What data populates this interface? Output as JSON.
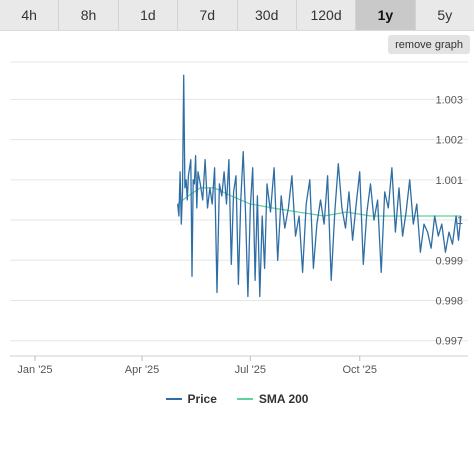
{
  "tabs": [
    {
      "label": "4h",
      "active": false
    },
    {
      "label": "8h",
      "active": false
    },
    {
      "label": "1d",
      "active": false
    },
    {
      "label": "7d",
      "active": false
    },
    {
      "label": "30d",
      "active": false
    },
    {
      "label": "120d",
      "active": false
    },
    {
      "label": "1y",
      "active": true
    },
    {
      "label": "5y",
      "active": false
    }
  ],
  "remove_graph_label": "remove graph",
  "colors": {
    "price": "#2f6ea5",
    "sma": "#5fd19a",
    "grid": "#e6e6e6"
  },
  "chart_data": {
    "type": "line",
    "title": "",
    "xlabel": "",
    "ylabel": "",
    "x_ticks": [
      "Jan '25",
      "Apr '25",
      "Jul '25",
      "Oct '25"
    ],
    "y_ticks": [
      "0.997",
      "0.998",
      "0.999",
      "1",
      "1.001",
      "1.002",
      "1.003"
    ],
    "xlim": [
      "2024-12-11",
      "2025-12-31"
    ],
    "ylim": [
      0.99662,
      1.00393
    ],
    "grid": true,
    "legend_position": "bottom",
    "series": [
      {
        "name": "Price",
        "color": "#2f6ea5",
        "x": [
          "2025-05-01",
          "2025-05-02",
          "2025-05-03",
          "2025-05-04",
          "2025-05-05",
          "2025-05-06",
          "2025-05-07",
          "2025-05-08",
          "2025-05-09",
          "2025-05-10",
          "2025-05-11",
          "2025-05-12",
          "2025-05-13",
          "2025-05-14",
          "2025-05-15",
          "2025-05-16",
          "2025-05-17",
          "2025-05-18",
          "2025-05-20",
          "2025-05-22",
          "2025-05-24",
          "2025-05-26",
          "2025-05-28",
          "2025-05-30",
          "2025-06-01",
          "2025-06-03",
          "2025-06-05",
          "2025-06-07",
          "2025-06-09",
          "2025-06-11",
          "2025-06-13",
          "2025-06-15",
          "2025-06-17",
          "2025-06-19",
          "2025-06-21",
          "2025-06-23",
          "2025-06-25",
          "2025-06-27",
          "2025-06-29",
          "2025-07-01",
          "2025-07-03",
          "2025-07-05",
          "2025-07-07",
          "2025-07-09",
          "2025-07-11",
          "2025-07-13",
          "2025-07-15",
          "2025-07-18",
          "2025-07-21",
          "2025-07-24",
          "2025-07-27",
          "2025-07-30",
          "2025-08-02",
          "2025-08-05",
          "2025-08-08",
          "2025-08-11",
          "2025-08-14",
          "2025-08-17",
          "2025-08-20",
          "2025-08-23",
          "2025-08-26",
          "2025-08-29",
          "2025-09-01",
          "2025-09-04",
          "2025-09-07",
          "2025-09-10",
          "2025-09-13",
          "2025-09-16",
          "2025-09-19",
          "2025-09-22",
          "2025-09-25",
          "2025-09-28",
          "2025-10-01",
          "2025-10-04",
          "2025-10-07",
          "2025-10-10",
          "2025-10-13",
          "2025-10-16",
          "2025-10-19",
          "2025-10-22",
          "2025-10-25",
          "2025-10-28",
          "2025-10-31",
          "2025-11-03",
          "2025-11-06",
          "2025-11-09",
          "2025-11-12",
          "2025-11-15",
          "2025-11-18",
          "2025-11-21",
          "2025-11-24",
          "2025-11-27",
          "2025-11-30",
          "2025-12-03",
          "2025-12-06",
          "2025-12-09",
          "2025-12-12",
          "2025-12-15",
          "2025-12-18",
          "2025-12-21",
          "2025-12-23",
          "2025-12-25"
        ],
        "values": [
          1.0004,
          1.0001,
          1.0012,
          0.9999,
          1.0007,
          1.0036,
          1.0008,
          1.001,
          1.0005,
          1.0011,
          1.0013,
          1.0015,
          0.9986,
          1.001,
          1.0009,
          1.0016,
          1.0003,
          1.0012,
          1.0009,
          1.0005,
          1.0015,
          1.0003,
          1.0008,
          1.0004,
          1.0013,
          0.9982,
          1.0009,
          1.0006,
          1.0012,
          1.0004,
          1.0015,
          0.9989,
          1.0007,
          1.0011,
          0.9984,
          1.0005,
          1.0017,
          1.0002,
          0.9981,
          1.0003,
          1.0013,
          0.9985,
          1.0006,
          0.9981,
          1.0001,
          0.9988,
          1.0009,
          1.0002,
          1.0013,
          0.999,
          1.0006,
          0.9998,
          1.0003,
          1.0011,
          0.9996,
          1.0001,
          0.9987,
          1.0004,
          1.001,
          0.9988,
          0.9999,
          1.0005,
          0.9999,
          1.0011,
          0.9985,
          1.0002,
          1.0014,
          1.0003,
          0.9998,
          1.0007,
          0.9995,
          1.0004,
          1.0012,
          0.9989,
          1.0002,
          1.0009,
          1.0,
          1.0005,
          0.9987,
          1.0007,
          1.0003,
          1.0013,
          0.9997,
          1.0008,
          0.9996,
          1.0002,
          1.001,
          0.9999,
          1.0004,
          0.9992,
          0.9999,
          0.9997,
          0.9993,
          1.0001,
          0.9996,
          0.9999,
          0.9992,
          0.9997,
          0.9994,
          1.0001,
          0.9995,
          1.0001
        ]
      },
      {
        "name": "SMA 200",
        "color": "#5fd19a",
        "x": [
          "2025-05-01",
          "2025-05-10",
          "2025-05-20",
          "2025-06-01",
          "2025-06-15",
          "2025-07-01",
          "2025-07-20",
          "2025-08-10",
          "2025-09-01",
          "2025-09-20",
          "2025-10-10",
          "2025-10-31",
          "2025-11-20",
          "2025-12-10",
          "2025-12-25"
        ],
        "values": [
          1.0004,
          1.0006,
          1.0008,
          1.0008,
          1.0006,
          1.0004,
          1.0003,
          1.0002,
          1.0001,
          1.0002,
          1.0001,
          1.0001,
          1.0001,
          1.0001,
          1.0001
        ]
      }
    ]
  }
}
